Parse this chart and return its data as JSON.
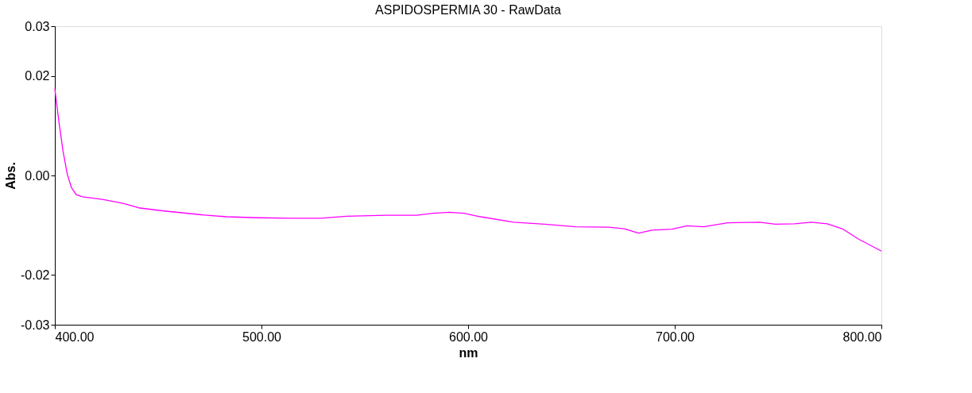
{
  "chart_data": {
    "type": "line",
    "title": "ASPIDOSPERMIA 30 - RawData",
    "xlabel": "nm",
    "ylabel": "Abs.",
    "xlim": [
      400,
      800
    ],
    "ylim": [
      -0.03,
      0.03
    ],
    "xticks": [
      {
        "value": 400,
        "label": "400.00"
      },
      {
        "value": 500,
        "label": "500.00"
      },
      {
        "value": 600,
        "label": "600.00"
      },
      {
        "value": 700,
        "label": "700.00"
      },
      {
        "value": 800,
        "label": "800.00"
      }
    ],
    "yticks": [
      0.03,
      0.02,
      {
        "value": 0,
        "label": "0.00"
      },
      -0.02,
      -0.03
    ],
    "grid": false,
    "legend": false,
    "marker": "none",
    "line_style": "solid",
    "series": [
      {
        "color": "#ff00ff",
        "x": [
          400,
          402,
          404,
          406,
          408,
          410.4,
          413.5,
          423,
          433,
          440.5,
          452,
          471,
          483,
          498,
          514,
          529,
          541,
          560,
          575,
          583,
          591,
          598,
          606,
          622,
          637,
          652,
          668,
          675.5,
          682.5,
          689,
          698.7,
          706,
          714,
          725.6,
          741,
          748.7,
          758,
          766,
          773.8,
          781.5,
          789,
          800
        ],
        "values": [
          0.0174,
          0.0107,
          0.0048,
          0.0003,
          -0.0024,
          -0.0039,
          -0.0043,
          -0.0048,
          -0.0056,
          -0.0065,
          -0.0071,
          -0.0079,
          -0.0083,
          -0.0085,
          -0.0086,
          -0.0086,
          -0.0082,
          -0.008,
          -0.008,
          -0.0076,
          -0.0074,
          -0.0076,
          -0.0083,
          -0.0094,
          -0.0098,
          -0.0103,
          -0.0104,
          -0.0107,
          -0.0116,
          -0.011,
          -0.0108,
          -0.0101,
          -0.0103,
          -0.0095,
          -0.0094,
          -0.0098,
          -0.0097,
          -0.0094,
          -0.0097,
          -0.0108,
          -0.0128,
          -0.0152
        ]
      }
    ]
  }
}
